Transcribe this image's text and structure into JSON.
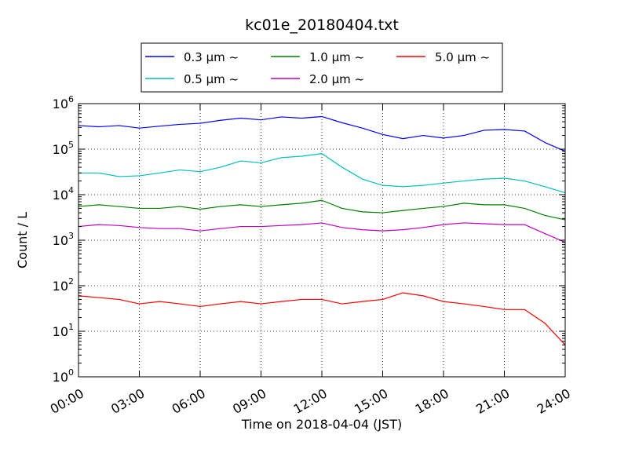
{
  "chart_data": {
    "type": "line",
    "title": "kc01e_20180404.txt",
    "xlabel": "Time on 2018-04-04 (JST)",
    "ylabel": "Count / L",
    "y_scale": "log",
    "ylim": [
      1,
      1000000
    ],
    "y_ticks": [
      {
        "base": "10",
        "exp": "0"
      },
      {
        "base": "10",
        "exp": "1"
      },
      {
        "base": "10",
        "exp": "2"
      },
      {
        "base": "10",
        "exp": "3"
      },
      {
        "base": "10",
        "exp": "4"
      },
      {
        "base": "10",
        "exp": "5"
      },
      {
        "base": "10",
        "exp": "6"
      }
    ],
    "xlim": [
      "00:00",
      "24:00"
    ],
    "x_ticks": [
      "00:00",
      "03:00",
      "06:00",
      "09:00",
      "12:00",
      "15:00",
      "18:00",
      "21:00",
      "24:00"
    ],
    "grid": true,
    "legend_position": "top-center",
    "x": [
      "00:00",
      "01:00",
      "02:00",
      "03:00",
      "04:00",
      "05:00",
      "06:00",
      "07:00",
      "08:00",
      "09:00",
      "10:00",
      "11:00",
      "12:00",
      "13:00",
      "14:00",
      "15:00",
      "16:00",
      "17:00",
      "18:00",
      "19:00",
      "20:00",
      "21:00",
      "22:00",
      "23:00",
      "24:00"
    ],
    "series": [
      {
        "name": "0.3 μm ~",
        "color": "#0000ff",
        "values": [
          330000,
          310000,
          330000,
          290000,
          320000,
          350000,
          370000,
          430000,
          480000,
          440000,
          510000,
          480000,
          520000,
          380000,
          290000,
          210000,
          170000,
          200000,
          175000,
          200000,
          260000,
          270000,
          250000,
          140000,
          90000
        ]
      },
      {
        "name": "0.5 μm ~",
        "color": "#00bfbf",
        "values": [
          30000,
          30000,
          25000,
          26000,
          30000,
          35000,
          32000,
          40000,
          55000,
          50000,
          65000,
          70000,
          80000,
          40000,
          22000,
          16000,
          15000,
          16000,
          18000,
          20000,
          22000,
          23000,
          20000,
          15000,
          11000
        ]
      },
      {
        "name": "1.0 μm ~",
        "color": "#008000",
        "values": [
          5500,
          6000,
          5500,
          5000,
          5000,
          5500,
          4800,
          5500,
          6000,
          5500,
          6000,
          6500,
          7500,
          5000,
          4200,
          4000,
          4500,
          5000,
          5500,
          6500,
          6000,
          6000,
          5000,
          3500,
          2800
        ]
      },
      {
        "name": "2.0 μm ~",
        "color": "#bf00bf",
        "values": [
          2000,
          2200,
          2100,
          1900,
          1800,
          1800,
          1600,
          1800,
          2000,
          2000,
          2100,
          2200,
          2400,
          1900,
          1700,
          1600,
          1700,
          1900,
          2200,
          2400,
          2300,
          2200,
          2200,
          1400,
          900
        ]
      },
      {
        "name": "5.0 μm ~",
        "color": "#ff0000",
        "values": [
          60,
          55,
          50,
          40,
          45,
          40,
          35,
          40,
          45,
          40,
          45,
          50,
          50,
          40,
          45,
          50,
          70,
          60,
          45,
          40,
          35,
          30,
          30,
          15,
          5
        ]
      }
    ]
  }
}
